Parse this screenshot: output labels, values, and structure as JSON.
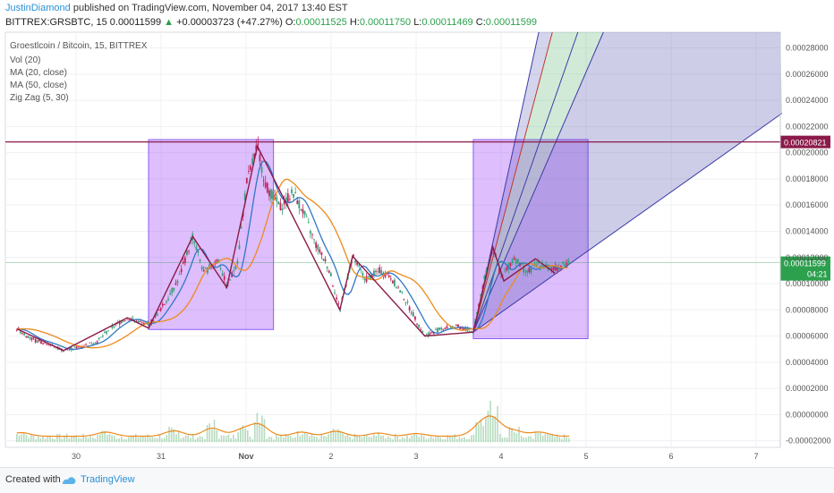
{
  "header": {
    "author": "JustinDiamond",
    "published_text": "published on TradingView.com, November 04, 2017 13:40 EST",
    "symbol": "BITTREX:GRSBTC, 15",
    "last": "0.00011599",
    "change_arrow": "▲",
    "change": "+0.00003723 (+47.27%)",
    "o_label": "O:",
    "o_value": "0.00011525",
    "h_label": "H:",
    "h_value": "0.00011750",
    "l_label": "L:",
    "l_value": "0.00011469",
    "c_label": "C:",
    "c_value": "0.00011599"
  },
  "legend": {
    "title": "Groestlcoin / Bitcoin, 15, BITTREX",
    "indicators": [
      "Vol (20)",
      "MA (20, close)",
      "MA (50, close)",
      "Zig Zag (5, 30)"
    ]
  },
  "footer": {
    "created": "Created with",
    "brand": "TradingView"
  },
  "colors": {
    "candle_up": "#3a9e7a",
    "candle_down": "#c2255c",
    "ma20": "#2f77c6",
    "ma50": "#ee8a1c",
    "zigzag": "#8b1a4a",
    "box": "#a855f7",
    "resistance": "#8b1a4a",
    "price_line": "#2ca04d",
    "volume": "#9ecfa9",
    "vol_ma": "#ee8a1c",
    "fan_blue": "#3c3ca8",
    "fan_green": "#2ca04d"
  },
  "chart_data": {
    "type": "candlestick",
    "x_tick_labels": [
      "30",
      "31",
      "Nov",
      "2",
      "3",
      "4",
      "5",
      "6",
      "7"
    ],
    "x_tick_positions_days": [
      0,
      1,
      2,
      3,
      4,
      5,
      6,
      7,
      8
    ],
    "y_tick_labels": [
      "0.00028000",
      "0.00026000",
      "0.00024000",
      "0.00022000",
      "0.00020000",
      "0.00018000",
      "0.00016000",
      "0.00014000",
      "0.00012000",
      "0.00010000",
      "0.00008000",
      "0.00006000",
      "0.00004000",
      "0.00002000",
      "0.00000000",
      "-0.00002000"
    ],
    "ylim": [
      -2.5e-05,
      0.000292
    ],
    "resistance_level": 0.00020821,
    "resistance_label": "0.00020821",
    "last_price": 0.00011599,
    "last_price_label": "0.00011599",
    "countdown_label": "04:21",
    "price_path": [
      [
        -0.75,
        6.55e-05
      ],
      [
        -0.55,
        5.7e-05
      ],
      [
        -0.4,
        5.45e-05
      ],
      [
        -0.2,
        4.9e-05
      ],
      [
        0.0,
        5.2e-05
      ],
      [
        0.2,
        5.6e-05
      ],
      [
        0.35,
        6.6e-05
      ],
      [
        0.55,
        7.4e-05
      ],
      [
        0.8,
        6.8e-05
      ],
      [
        1.0,
        8.6e-05
      ],
      [
        1.15,
        0.000103
      ],
      [
        1.32,
        0.000136
      ],
      [
        1.45,
        0.000108
      ],
      [
        1.62,
        0.000119
      ],
      [
        1.72,
        9.7e-05
      ],
      [
        1.85,
        0.000118
      ],
      [
        1.95,
        0.000176
      ],
      [
        2.08,
        0.000205
      ],
      [
        2.18,
        0.000175
      ],
      [
        2.35,
        0.000158
      ],
      [
        2.5,
        0.00017
      ],
      [
        2.62,
        0.000155
      ],
      [
        2.75,
        0.000132
      ],
      [
        2.92,
        0.000112
      ],
      [
        3.05,
        8e-05
      ],
      [
        3.2,
        0.000121
      ],
      [
        3.35,
        0.000103
      ],
      [
        3.52,
        0.00011
      ],
      [
        3.65,
        0.000105
      ],
      [
        3.8,
        9e-05
      ],
      [
        4.05,
        6e-05
      ],
      [
        4.25,
        6.6e-05
      ],
      [
        4.45,
        6.7e-05
      ],
      [
        4.62,
        6.3e-05
      ],
      [
        4.72,
        9.6e-05
      ],
      [
        4.85,
        0.000128
      ],
      [
        4.95,
        0.000104
      ],
      [
        5.1,
        0.00012
      ],
      [
        5.25,
        0.000108
      ],
      [
        5.4,
        0.000116
      ],
      [
        5.55,
        0.00011
      ],
      [
        5.65,
        0.000114
      ],
      [
        5.75,
        0.000116
      ]
    ],
    "zigzag_points": [
      [
        -0.75,
        6.55e-05
      ],
      [
        -0.2,
        4.9e-05
      ],
      [
        0.55,
        7.4e-05
      ],
      [
        0.8,
        6.6e-05
      ],
      [
        1.32,
        0.000136
      ],
      [
        1.72,
        9.7e-05
      ],
      [
        2.08,
        0.000205
      ],
      [
        3.05,
        8e-05
      ],
      [
        3.2,
        0.000121
      ],
      [
        4.05,
        6e-05
      ],
      [
        4.62,
        6.3e-05
      ],
      [
        4.85,
        0.000128
      ],
      [
        4.98,
        0.000102
      ],
      [
        5.35,
        0.000119
      ],
      [
        5.58,
        0.000108
      ]
    ],
    "boxes": [
      {
        "x0": 0.8,
        "x1": 2.27,
        "y0": 6.5e-05,
        "y1": 0.00021
      },
      {
        "x0": 4.62,
        "x1": 5.97,
        "y0": 5.8e-05,
        "y1": 0.00021
      }
    ],
    "gann_fan_origin": [
      4.62,
      6.3e-05
    ],
    "gann_fan_rays": [
      {
        "x": 5.39,
        "y": 0.000292
      },
      {
        "x": 5.55,
        "y": 0.000292
      },
      {
        "x": 5.85,
        "y": 0.000292
      },
      {
        "x": 6.15,
        "y": 0.000292
      },
      {
        "x": 8.25,
        "y": 0.00023
      }
    ],
    "volume_spikes": [
      [
        -0.7,
        8e-06
      ],
      [
        0.3,
        9e-06
      ],
      [
        1.1,
        1.2e-05
      ],
      [
        1.55,
        1.8e-05
      ],
      [
        1.9,
        1.4e-05
      ],
      [
        2.1,
        2.5e-05
      ],
      [
        2.6,
        9e-06
      ],
      [
        3.0,
        1.1e-05
      ],
      [
        3.5,
        7e-06
      ],
      [
        3.95,
        6e-06
      ],
      [
        4.7,
        2e-05
      ],
      [
        4.85,
        3.5e-05
      ],
      [
        5.1,
        1.2e-05
      ],
      [
        5.4,
        9e-06
      ]
    ]
  }
}
